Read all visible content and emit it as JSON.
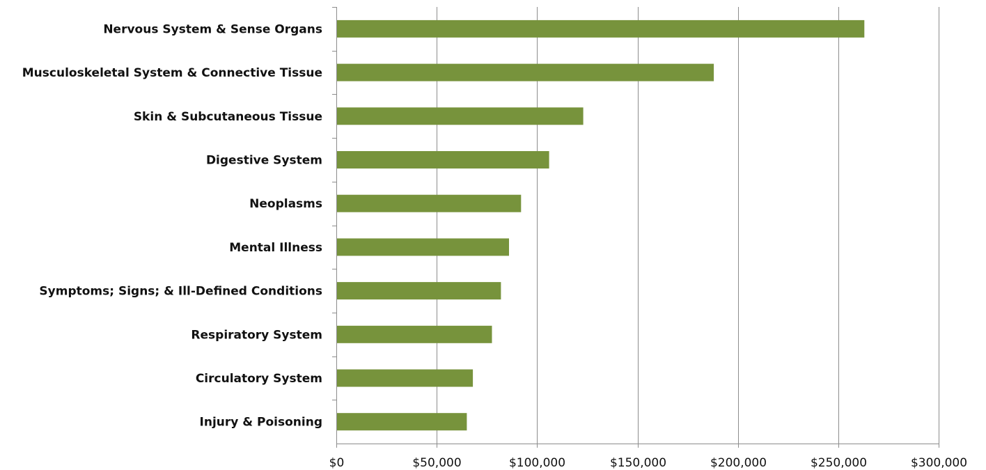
{
  "chart_data": {
    "type": "bar",
    "orientation": "horizontal",
    "title": "",
    "xlabel": "",
    "ylabel": "",
    "categories": [
      "Nervous System & Sense Organs",
      "Musculoskeletal System & Connective Tissue",
      "Skin & Subcutaneous Tissue",
      "Digestive System",
      "Neoplasms",
      "Mental Illness",
      "Symptoms; Signs; & Ill-Defined Conditions",
      "Respiratory System",
      "Circulatory System",
      "Injury & Poisoning"
    ],
    "values": [
      263000,
      188000,
      123000,
      106000,
      92000,
      86000,
      82000,
      77500,
      68000,
      65000
    ],
    "xlim": [
      0,
      300000
    ],
    "x_ticks": [
      0,
      50000,
      100000,
      150000,
      200000,
      250000,
      300000
    ],
    "x_tick_labels": [
      "$0",
      "$50,000",
      "$100,000",
      "$150,000",
      "$200,000",
      "$250,000",
      "$300,000"
    ],
    "grid": "vertical",
    "legend": "none",
    "colors": {
      "bar": "#77933c",
      "grid": "#8c8c8c",
      "axis": "#8c8c8c",
      "text": "#111111"
    }
  }
}
